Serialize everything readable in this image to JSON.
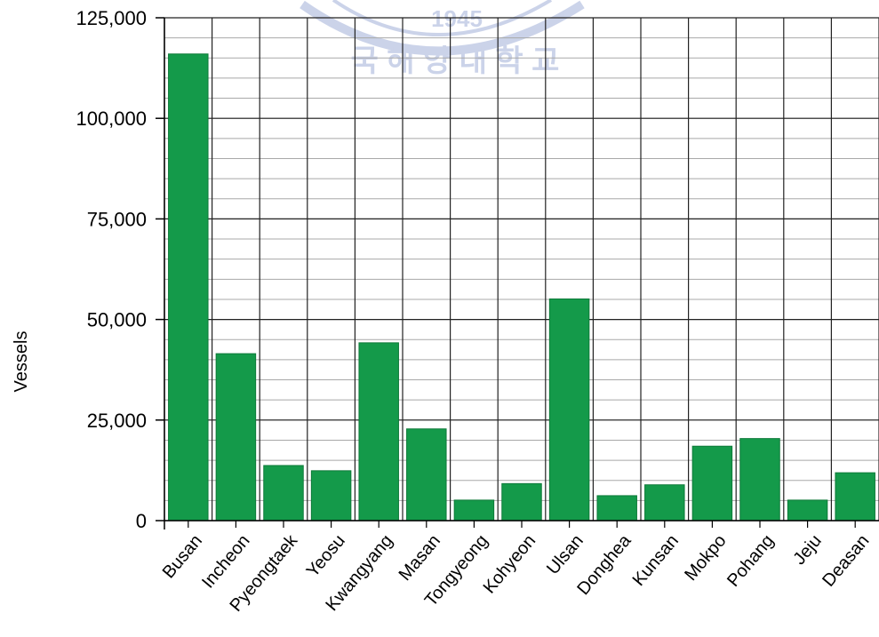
{
  "chart_data": {
    "type": "bar",
    "title": "",
    "xlabel": "",
    "ylabel": "Vessels",
    "ylim": [
      0,
      125000
    ],
    "yticks": [
      0,
      25000,
      50000,
      75000,
      100000,
      125000
    ],
    "ytick_labels": [
      "0",
      "25,000",
      "50,000",
      "75,000",
      "100,000",
      "125,000"
    ],
    "minor_grid_step": 5000,
    "grid": true,
    "categories": [
      "Busan",
      "Incheon",
      "Pyeongtaek",
      "Yeosu",
      "Kwangyang",
      "Masan",
      "Tongyeong",
      "Kohyeon",
      "Ulsan",
      "Donghea",
      "Kunsan",
      "Mokpo",
      "Pohang",
      "Jeju",
      "Deasan"
    ],
    "values": [
      116000,
      41500,
      13700,
      12400,
      44200,
      22800,
      5100,
      9200,
      55100,
      6200,
      8900,
      18500,
      20400,
      5100,
      11900
    ],
    "bar_color": "#149a4a"
  },
  "watermark": {
    "year": "1945",
    "text": "국 해 양 대 학 교",
    "color": "#c3cce6"
  }
}
